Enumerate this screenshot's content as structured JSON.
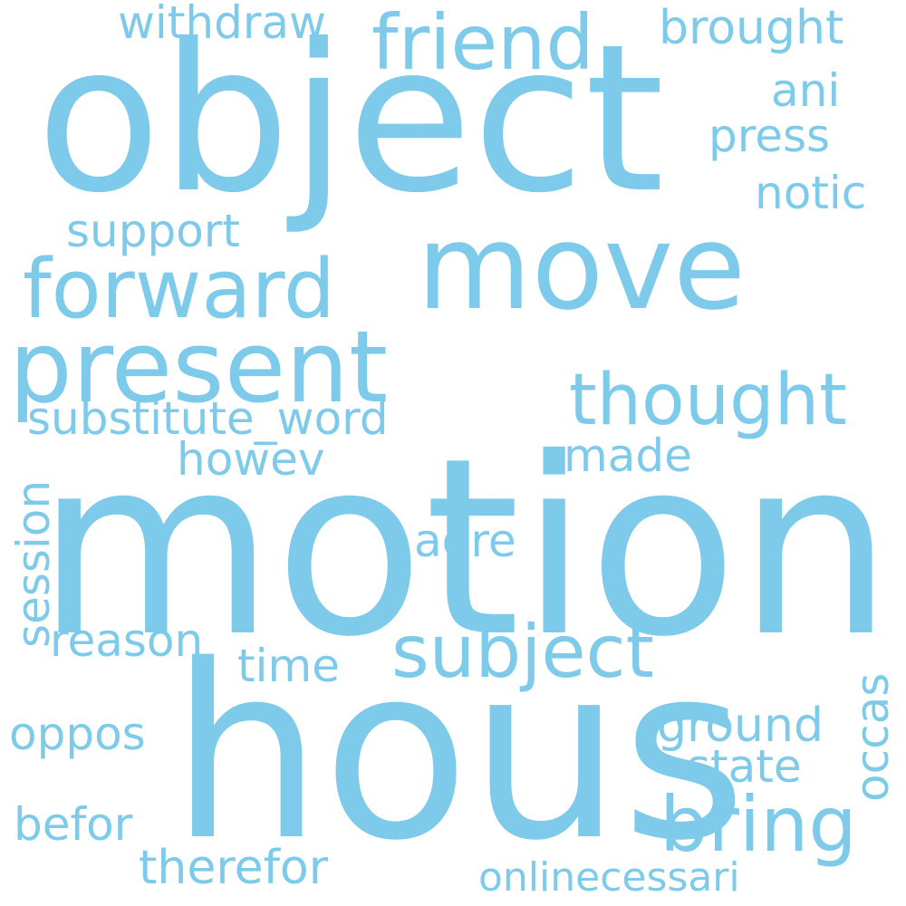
{
  "cloud": {
    "color": "#7ecaea",
    "background": "#ffffff",
    "words": {
      "motion": "motion",
      "hous": "hous",
      "object": "object",
      "move": "move",
      "present": "present",
      "forward": "forward",
      "friend": "friend",
      "thought": "thought",
      "subject": "subject",
      "bring": "bring",
      "substitute_word": "substitute_word",
      "support": "support",
      "withdraw": "withdraw",
      "brought": "brought",
      "ani": "ani",
      "press": "press",
      "notic": "notic",
      "howev": "howev",
      "made": "made",
      "agre": "agre",
      "session": "session",
      "reason": "reason",
      "time": "time",
      "occas": "occas",
      "ground": "ground",
      "state": "state",
      "oppos": "oppos",
      "befor": "befor",
      "therefor": "therefor",
      "onlinecessari": "onlinecessari"
    }
  }
}
